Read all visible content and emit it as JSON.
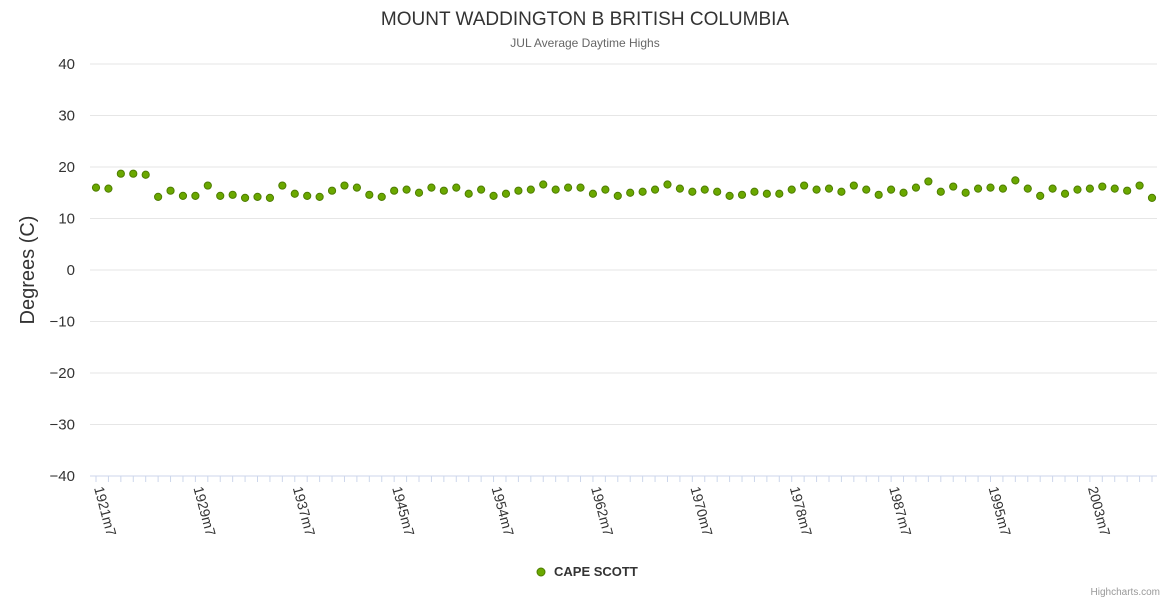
{
  "chart_data": {
    "type": "scatter",
    "title": "MOUNT WADDINGTON B BRITISH COLUMBIA",
    "subtitle": "JUL Average Daytime Highs",
    "ylabel": "Degrees (C)",
    "xlabel": "",
    "ylim": [
      -40,
      40
    ],
    "yticks": [
      40,
      30,
      20,
      10,
      0,
      -10,
      -20,
      -30,
      -40
    ],
    "x_tick_labels": [
      "1921m7",
      "1929m7",
      "1937m7",
      "1945m7",
      "1954m7",
      "1962m7",
      "1970m7",
      "1978m7",
      "1987m7",
      "1995m7",
      "2003m7"
    ],
    "x_tick_indices": [
      0,
      8,
      16,
      24,
      32,
      40,
      48,
      56,
      64,
      72,
      80
    ],
    "grid": true,
    "legend_position": "bottom-center",
    "series": [
      {
        "name": "CAPE SCOTT",
        "color": "#6aa800",
        "values": [
          16.0,
          15.8,
          18.7,
          18.7,
          18.5,
          14.2,
          15.4,
          14.4,
          14.4,
          16.4,
          14.4,
          14.6,
          14.0,
          14.2,
          14.0,
          16.4,
          14.8,
          14.4,
          14.2,
          15.4,
          16.4,
          16.0,
          14.6,
          14.2,
          15.4,
          15.6,
          15.0,
          16.0,
          15.4,
          16.0,
          14.8,
          15.6,
          14.4,
          14.8,
          15.4,
          15.6,
          16.6,
          15.6,
          16.0,
          16.0,
          14.8,
          15.6,
          14.4,
          15.0,
          15.2,
          15.6,
          16.6,
          15.8,
          15.2,
          15.6,
          15.2,
          14.4,
          14.6,
          15.2,
          14.8,
          14.8,
          15.6,
          16.4,
          15.6,
          15.8,
          15.2,
          16.4,
          15.6,
          14.6,
          15.6,
          15.0,
          16.0,
          17.2,
          15.2,
          16.2,
          15.0,
          15.8,
          16.0,
          15.8,
          17.4,
          15.8,
          14.4,
          15.8,
          14.8,
          15.6,
          15.8,
          16.2,
          15.8,
          15.4,
          16.4,
          14.0
        ]
      }
    ]
  },
  "credits": "Highcharts.com"
}
